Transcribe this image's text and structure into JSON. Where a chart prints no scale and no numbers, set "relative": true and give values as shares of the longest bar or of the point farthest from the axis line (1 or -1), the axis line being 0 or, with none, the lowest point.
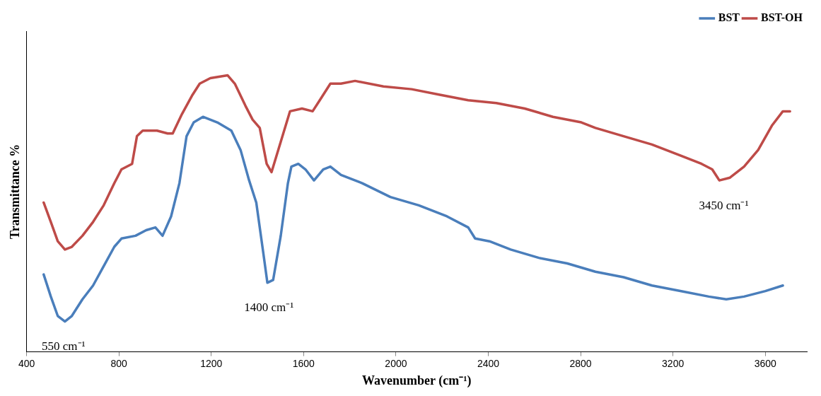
{
  "chart_data": {
    "type": "line",
    "relative": true,
    "xlabel": "Wavenumber (cm⁻¹)",
    "ylabel": "Transmittance %",
    "xlim": [
      400,
      3780
    ],
    "xticks": [
      400,
      800,
      1200,
      1600,
      2000,
      2400,
      2800,
      3200,
      3600
    ],
    "grid": false,
    "legend": "top right",
    "marker": "none",
    "line_style": "solid",
    "annotations": [
      {
        "text": "550 cm⁻¹",
        "x": 560,
        "y": 0.11
      },
      {
        "text": "1400 cm⁻¹",
        "x": 1450,
        "y": 0.25
      },
      {
        "text": "3450 cm⁻¹",
        "x": 3420,
        "y": 0.62
      }
    ],
    "series": [
      {
        "name": "BST",
        "color": "#4a7ebb",
        "x": [
          474,
          505,
          535,
          566,
          596,
          642,
          688,
          734,
          780,
          811,
          872,
          918,
          958,
          989,
          1026,
          1062,
          1093,
          1124,
          1164,
          1226,
          1287,
          1327,
          1364,
          1395,
          1425,
          1443,
          1468,
          1501,
          1532,
          1547,
          1577,
          1608,
          1645,
          1685,
          1716,
          1762,
          1854,
          1976,
          2099,
          2221,
          2313,
          2343,
          2405,
          2497,
          2619,
          2742,
          2864,
          2986,
          3109,
          3232,
          3355,
          3431,
          3508,
          3600,
          3676
        ],
        "values": [
          0.28,
          0.2,
          0.13,
          0.11,
          0.13,
          0.19,
          0.24,
          0.31,
          0.38,
          0.41,
          0.42,
          0.44,
          0.45,
          0.42,
          0.49,
          0.61,
          0.78,
          0.83,
          0.85,
          0.83,
          0.8,
          0.73,
          0.62,
          0.54,
          0.36,
          0.25,
          0.26,
          0.42,
          0.61,
          0.67,
          0.68,
          0.66,
          0.62,
          0.66,
          0.67,
          0.64,
          0.61,
          0.56,
          0.53,
          0.49,
          0.45,
          0.41,
          0.4,
          0.37,
          0.34,
          0.32,
          0.29,
          0.27,
          0.24,
          0.22,
          0.2,
          0.19,
          0.2,
          0.22,
          0.24
        ]
      },
      {
        "name": "BST-OH",
        "color": "#be4b48",
        "x": [
          474,
          505,
          535,
          566,
          596,
          642,
          688,
          734,
          780,
          811,
          857,
          878,
          903,
          965,
          1011,
          1033,
          1073,
          1119,
          1150,
          1196,
          1271,
          1302,
          1348,
          1379,
          1410,
          1440,
          1461,
          1501,
          1541,
          1593,
          1639,
          1670,
          1716,
          1762,
          1823,
          1946,
          2068,
          2190,
          2313,
          2435,
          2558,
          2680,
          2803,
          2864,
          2986,
          3109,
          3232,
          3324,
          3370,
          3401,
          3447,
          3508,
          3569,
          3630,
          3676,
          3707
        ],
        "values": [
          0.54,
          0.47,
          0.4,
          0.37,
          0.38,
          0.42,
          0.47,
          0.53,
          0.61,
          0.66,
          0.68,
          0.78,
          0.8,
          0.8,
          0.79,
          0.79,
          0.86,
          0.93,
          0.97,
          0.99,
          1.0,
          0.97,
          0.89,
          0.84,
          0.81,
          0.68,
          0.65,
          0.76,
          0.87,
          0.88,
          0.87,
          0.91,
          0.97,
          0.97,
          0.98,
          0.96,
          0.95,
          0.93,
          0.91,
          0.9,
          0.88,
          0.85,
          0.83,
          0.81,
          0.78,
          0.75,
          0.71,
          0.68,
          0.66,
          0.62,
          0.63,
          0.67,
          0.73,
          0.82,
          0.87,
          0.87
        ]
      }
    ]
  }
}
